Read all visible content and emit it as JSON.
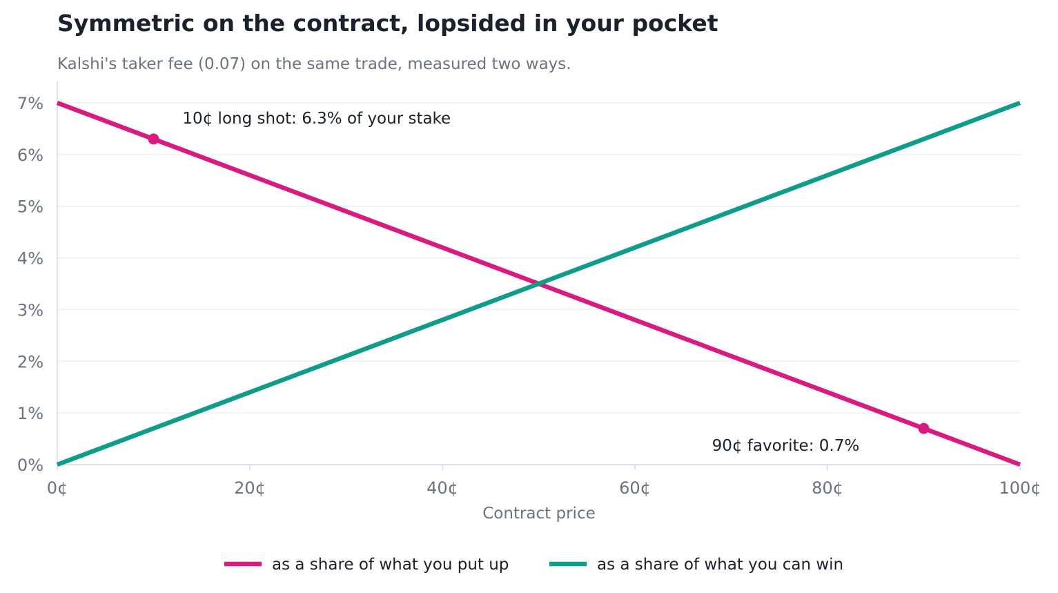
{
  "chart_data": {
    "type": "line",
    "title": "Symmetric on the contract, lopsided in your pocket",
    "subtitle": "Kalshi's taker fee (0.07) on the same trade, measured two ways.",
    "xlabel": "Contract price",
    "ylabel": "",
    "xlim": [
      0,
      100
    ],
    "ylim": [
      0,
      7
    ],
    "x_ticks": [
      {
        "value": 0,
        "label": "0¢"
      },
      {
        "value": 20,
        "label": "20¢"
      },
      {
        "value": 40,
        "label": "40¢"
      },
      {
        "value": 60,
        "label": "60¢"
      },
      {
        "value": 80,
        "label": "80¢"
      },
      {
        "value": 100,
        "label": "100¢"
      }
    ],
    "y_ticks": [
      {
        "value": 0,
        "label": "0%"
      },
      {
        "value": 1,
        "label": "1%"
      },
      {
        "value": 2,
        "label": "2%"
      },
      {
        "value": 3,
        "label": "3%"
      },
      {
        "value": 4,
        "label": "4%"
      },
      {
        "value": 5,
        "label": "5%"
      },
      {
        "value": 6,
        "label": "6%"
      },
      {
        "value": 7,
        "label": "7%"
      }
    ],
    "grid": "horizontal",
    "legend_position": "bottom-center",
    "series": [
      {
        "name": "as a share of what you put up",
        "color": "#d81b7f",
        "x": [
          0,
          10,
          20,
          30,
          40,
          50,
          60,
          70,
          80,
          90,
          100
        ],
        "y": [
          7.0,
          6.3,
          5.6,
          4.9,
          4.2,
          3.5,
          2.8,
          2.1,
          1.4,
          0.7,
          0.0
        ]
      },
      {
        "name": "as a share of what you can win",
        "color": "#0f9d89",
        "x": [
          0,
          10,
          20,
          30,
          40,
          50,
          60,
          70,
          80,
          90,
          100
        ],
        "y": [
          0.0,
          0.7,
          1.4,
          2.1,
          2.8,
          3.5,
          4.2,
          4.9,
          5.6,
          6.3,
          7.0
        ]
      }
    ],
    "markers": [
      {
        "series": 0,
        "x": 10,
        "y": 6.3
      },
      {
        "series": 0,
        "x": 90,
        "y": 0.7
      }
    ],
    "annotations": [
      {
        "text": "10¢ long shot: 6.3% of your stake",
        "x": 13,
        "y": 6.6
      },
      {
        "text": "90¢ favorite: 0.7%",
        "x": 68,
        "y": 0.27
      }
    ]
  },
  "colors": {
    "grid": "#edf0f5",
    "axis": "#d4d9e6",
    "text_muted": "#6b7280",
    "text_dark": "#1a202c"
  }
}
